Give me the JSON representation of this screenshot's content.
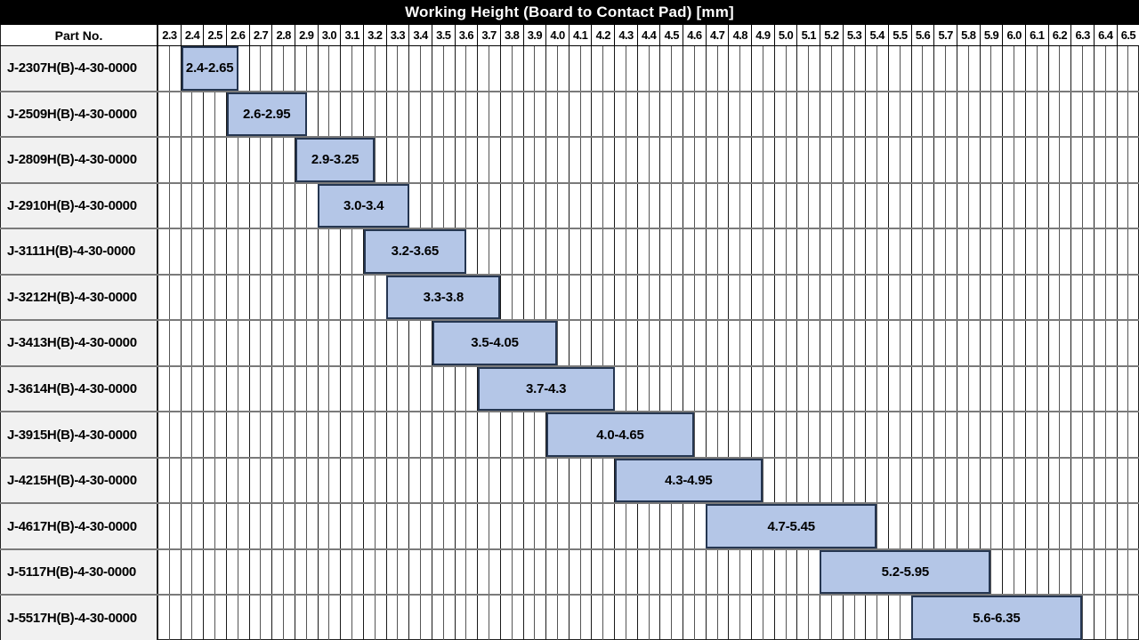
{
  "title": "Working Height (Board to Contact Pad) [mm]",
  "part_col_header": "Part No.",
  "axis": {
    "ticks": [
      "2.3",
      "2.4",
      "2.5",
      "2.6",
      "2.7",
      "2.8",
      "2.9",
      "3.0",
      "3.1",
      "3.2",
      "3.3",
      "3.4",
      "3.5",
      "3.6",
      "3.7",
      "3.8",
      "3.9",
      "4.0",
      "4.1",
      "4.2",
      "4.3",
      "4.4",
      "4.5",
      "4.6",
      "4.7",
      "4.8",
      "4.9",
      "5.0",
      "5.1",
      "5.2",
      "5.3",
      "5.4",
      "5.5",
      "5.6",
      "5.7",
      "5.8",
      "5.9",
      "6.0",
      "6.1",
      "6.2",
      "6.3",
      "6.4",
      "6.5"
    ],
    "subcells_per_tick": 2
  },
  "colors": {
    "title_bg": "#000000",
    "title_text": "#ffffff",
    "bar_fill": "#b4c6e7",
    "bar_border": "#253651",
    "part_cell_bg": "#f1f1f1",
    "row_separator": "#7a7a7a",
    "grid_line_minor": "#555555",
    "grid_line_major": "#1a1a1a"
  },
  "chart_data": {
    "type": "bar",
    "variant": "horizontal-range-gantt",
    "title": "Working Height (Board to Contact Pad) [mm]",
    "xlabel": "Working Height (Board to Contact Pad) [mm]",
    "xlim": [
      2.3,
      6.6
    ],
    "tick_step": 0.1,
    "grid": true,
    "rows": [
      {
        "part_no": "J-2307H(B)-4-30-0000",
        "start": 2.4,
        "end": 2.65,
        "label": "2.4-2.65"
      },
      {
        "part_no": "J-2509H(B)-4-30-0000",
        "start": 2.6,
        "end": 2.95,
        "label": "2.6-2.95"
      },
      {
        "part_no": "J-2809H(B)-4-30-0000",
        "start": 2.9,
        "end": 3.25,
        "label": "2.9-3.25"
      },
      {
        "part_no": "J-2910H(B)-4-30-0000",
        "start": 3.0,
        "end": 3.4,
        "label": "3.0-3.4"
      },
      {
        "part_no": "J-3111H(B)-4-30-0000",
        "start": 3.2,
        "end": 3.65,
        "label": "3.2-3.65"
      },
      {
        "part_no": "J-3212H(B)-4-30-0000",
        "start": 3.3,
        "end": 3.8,
        "label": "3.3-3.8"
      },
      {
        "part_no": "J-3413H(B)-4-30-0000",
        "start": 3.5,
        "end": 4.05,
        "label": "3.5-4.05"
      },
      {
        "part_no": "J-3614H(B)-4-30-0000",
        "start": 3.7,
        "end": 4.3,
        "label": "3.7-4.3"
      },
      {
        "part_no": "J-3915H(B)-4-30-0000",
        "start": 4.0,
        "end": 4.65,
        "label": "4.0-4.65"
      },
      {
        "part_no": "J-4215H(B)-4-30-0000",
        "start": 4.3,
        "end": 4.95,
        "label": "4.3-4.95"
      },
      {
        "part_no": "J-4617H(B)-4-30-0000",
        "start": 4.7,
        "end": 5.45,
        "label": "4.7-5.45"
      },
      {
        "part_no": "J-5117H(B)-4-30-0000",
        "start": 5.2,
        "end": 5.95,
        "label": "5.2-5.95"
      },
      {
        "part_no": "J-5517H(B)-4-30-0000",
        "start": 5.6,
        "end": 6.35,
        "label": "5.6-6.35"
      }
    ]
  }
}
